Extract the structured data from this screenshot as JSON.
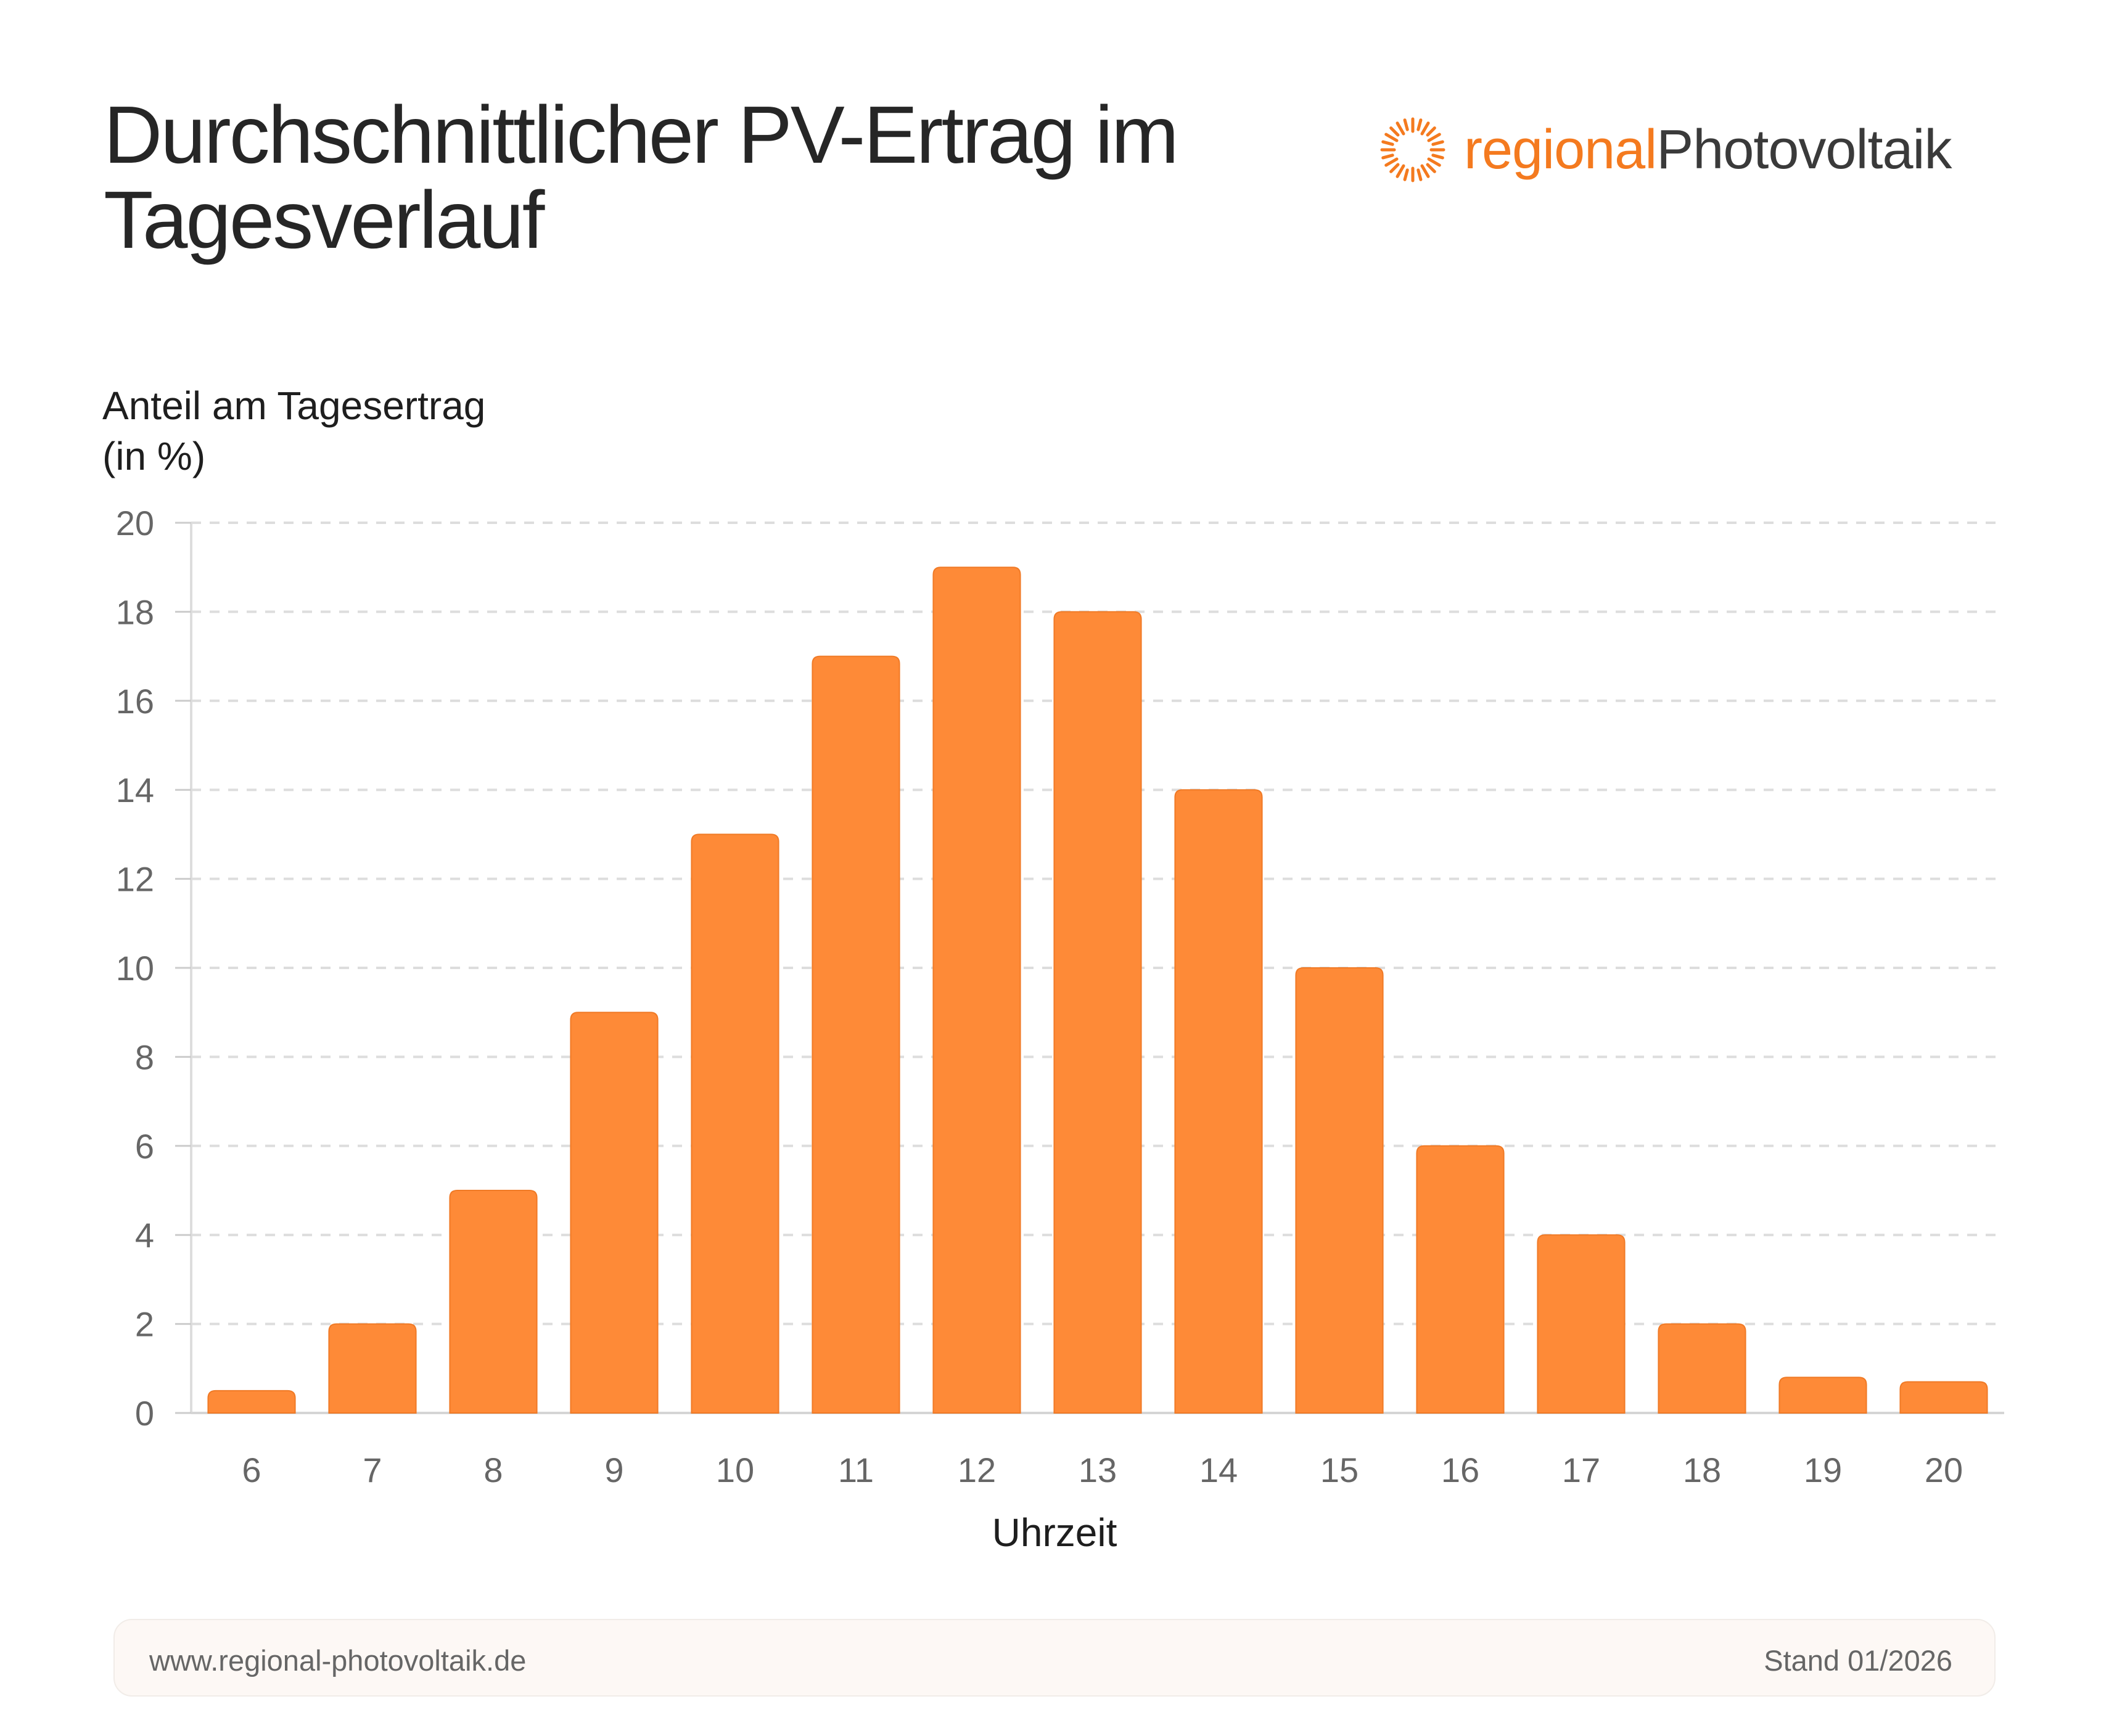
{
  "header": {
    "title": "Durchschnittlicher PV-Ertrag im Tagesverlauf"
  },
  "logo": {
    "part1": "regional",
    "part2": "Photovoltaik",
    "icon": "sun-ring-icon",
    "accent_color": "#f47a1f"
  },
  "chart_data": {
    "type": "bar",
    "ylabel_line1": "Anteil am Tagesertrag",
    "ylabel_line2": "(in %)",
    "xlabel": "Uhrzeit",
    "categories": [
      "6",
      "7",
      "8",
      "9",
      "10",
      "11",
      "12",
      "13",
      "14",
      "15",
      "16",
      "17",
      "18",
      "19",
      "20"
    ],
    "values": [
      0.5,
      2,
      5,
      9,
      13,
      17,
      19,
      18,
      14,
      10,
      6,
      4,
      2,
      0.8,
      0.7
    ],
    "ylim": [
      0,
      20
    ],
    "yticks": [
      0,
      2,
      4,
      6,
      8,
      10,
      12,
      14,
      16,
      18,
      20
    ],
    "grid": true,
    "bar_color": "#fe8a37"
  },
  "footer": {
    "url": "www.regional-photovoltaik.de",
    "date": "Stand 01/2026"
  }
}
